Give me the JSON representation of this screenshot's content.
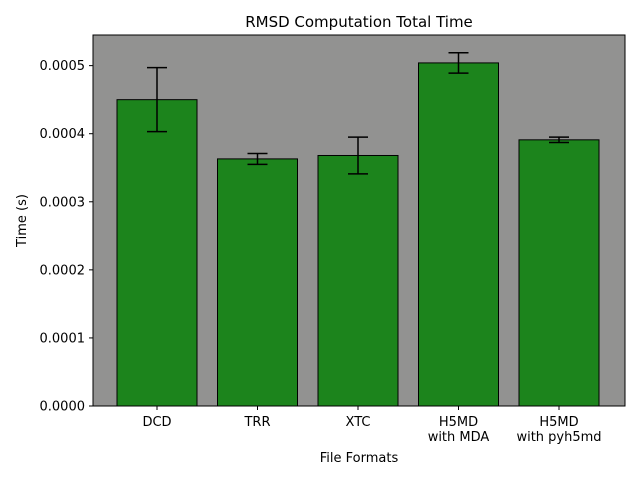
{
  "chart_data": {
    "type": "bar",
    "title": "RMSD Computation Total Time",
    "xlabel": "File Formats",
    "ylabel": "Time (s)",
    "categories": [
      [
        "DCD"
      ],
      [
        "TRR"
      ],
      [
        "XTC"
      ],
      [
        "H5MD",
        "with MDA"
      ],
      [
        "H5MD",
        "with pyh5md"
      ]
    ],
    "values": [
      0.00045,
      0.000363,
      0.000368,
      0.000504,
      0.000391
    ],
    "errors": [
      4.7e-05,
      8e-06,
      2.7e-05,
      1.5e-05,
      4e-06
    ],
    "ylim": [
      0,
      0.000545
    ],
    "yticks": [
      0,
      0.0001,
      0.0002,
      0.0003,
      0.0004,
      0.0005
    ],
    "ytick_labels": [
      "0.0000",
      "0.0001",
      "0.0002",
      "0.0003",
      "0.0004",
      "0.0005"
    ],
    "grid": false,
    "colors": {
      "bar": "#1c841c",
      "bar_edge": "#000000",
      "plot_background": "#929291",
      "error_bar": "#000000"
    }
  }
}
